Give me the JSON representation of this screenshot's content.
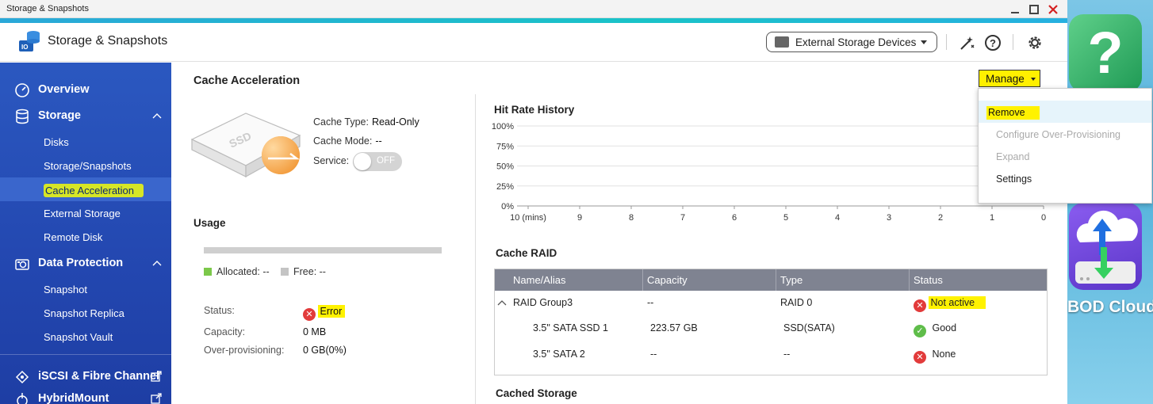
{
  "window": {
    "title": "Storage & Snapshots"
  },
  "header": {
    "app_title": "Storage & Snapshots",
    "external_dropdown": "External Storage Devices"
  },
  "sidebar": {
    "overview": "Overview",
    "storage": "Storage",
    "storage_items": [
      "Disks",
      "Storage/Snapshots",
      "Cache Acceleration",
      "External Storage",
      "Remote Disk"
    ],
    "data_protection": "Data Protection",
    "data_protection_items": [
      "Snapshot",
      "Snapshot Replica",
      "Snapshot Vault"
    ],
    "iscsi": "iSCSI & Fibre Channel",
    "hybridmount": "HybridMount",
    "active_item": "Cache Acceleration"
  },
  "main": {
    "section_title": "Cache Acceleration",
    "manage_label": "Manage",
    "cache_info": {
      "ssd_label": "SSD",
      "cache_type_label": "Cache Type:",
      "cache_type_value": "Read-Only",
      "cache_mode_label": "Cache Mode:",
      "cache_mode_value": "--",
      "service_label": "Service:",
      "service_value": "OFF"
    },
    "usage": {
      "title": "Usage",
      "allocated_label": "Allocated: --",
      "free_label": "Free: --",
      "status_label": "Status:",
      "status_value": "Error",
      "capacity_label": "Capacity:",
      "capacity_value": "0 MB",
      "overprov_label": "Over-provisioning:",
      "overprov_value": "0 GB(0%)"
    },
    "hit_rate_title": "Hit Rate History",
    "cache_raid": {
      "title": "Cache RAID",
      "headers": [
        "Name/Alias",
        "Capacity",
        "Type",
        "Status"
      ],
      "rows": [
        {
          "name": "RAID Group3",
          "capacity": "--",
          "type": "RAID 0",
          "status": "Not active"
        },
        {
          "name": "3.5\" SATA SSD 1",
          "capacity": "223.57 GB",
          "type": "SSD(SATA)",
          "status": "Good"
        },
        {
          "name": "3.5\" SATA 2",
          "capacity": "--",
          "type": "--",
          "status": "None"
        }
      ]
    },
    "cached_storage_title": "Cached Storage"
  },
  "manage_menu": [
    "Remove",
    "Configure Over-Provisioning",
    "Expand",
    "Settings"
  ],
  "desktop": {
    "jbod_label": "BOD Cloud"
  },
  "chart_data": {
    "type": "line",
    "title": "Hit Rate History",
    "x": [
      "10 (mins)",
      "9",
      "8",
      "7",
      "6",
      "5",
      "4",
      "3",
      "2",
      "1",
      "0"
    ],
    "y_ticks": [
      "100%",
      "75%",
      "50%",
      "25%",
      "0%"
    ],
    "ylim": [
      0,
      100
    ],
    "series": [],
    "grid": true
  },
  "colors": {
    "sidebar_bg": "#2347b0",
    "highlight_yellow": "#fff200",
    "highlight_green": "#d6e626",
    "error": "#e23b3b",
    "good": "#5fbd4a"
  }
}
